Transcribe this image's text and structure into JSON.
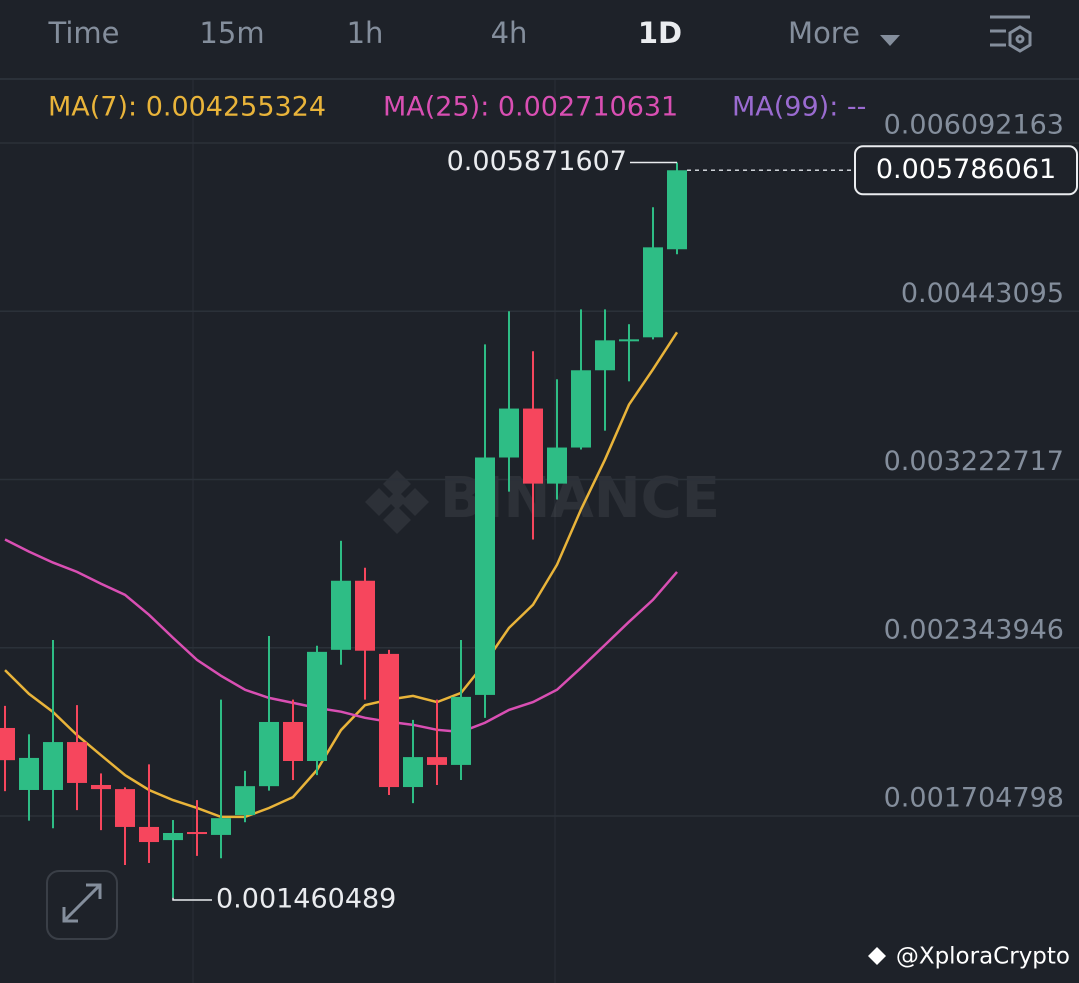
{
  "tabs": [
    "Time",
    "15m",
    "1h",
    "4h",
    "1D",
    "More"
  ],
  "active_tab": 4,
  "chart_data": {
    "type": "candlestick",
    "log_scale": true,
    "grid": true,
    "up_color": "#2ebd85",
    "down_color": "#f6465d",
    "ylim": [
      0.001243,
      0.006864
    ],
    "yticks": [
      0.006092163,
      0.00443095,
      0.003222717,
      0.002343946,
      0.001704798
    ],
    "open": [
      0.002014,
      0.001791,
      0.001791,
      0.001961,
      0.001808,
      0.001794,
      0.00167,
      0.001629,
      0.001654,
      0.001645,
      0.001708,
      0.001804,
      0.002037,
      0.001892,
      0.002335,
      0.002661,
      0.002317,
      0.001801,
      0.001906,
      0.001878,
      0.002144,
      0.00336,
      0.003686,
      0.003198,
      0.003424,
      0.003963,
      0.004194,
      0.004218,
      0.004983
    ],
    "high": [
      0.0021,
      0.00199,
      0.002379,
      0.002103,
      0.001848,
      0.0018,
      0.00188,
      0.001692,
      0.001757,
      0.002125,
      0.001857,
      0.002397,
      0.002125,
      0.002353,
      0.00287,
      0.002727,
      0.002335,
      0.002045,
      0.002125,
      0.002379,
      0.004162,
      0.004431,
      0.004108,
      0.003896,
      0.004447,
      0.004447,
      0.004324,
      0.005395,
      0.005871607
    ],
    "low": [
      0.001787,
      0.00169,
      0.001666,
      0.001724,
      0.00166,
      0.001554,
      0.00156,
      0.001460489,
      0.001581,
      0.001574,
      0.001685,
      0.001789,
      0.001825,
      0.001842,
      0.00227,
      0.002125,
      0.001774,
      0.001747,
      0.001808,
      0.001825,
      0.002053,
      0.00315,
      0.002877,
      0.003103,
      0.003411,
      0.003535,
      0.003881,
      0.004202,
      0.004936
    ],
    "close": [
      0.001895,
      0.001903,
      0.001961,
      0.001815,
      0.001794,
      0.00167,
      0.001623,
      0.001651,
      0.001648,
      0.001698,
      0.001804,
      0.002037,
      0.001892,
      0.002326,
      0.002661,
      0.002331,
      0.001801,
      0.001906,
      0.001878,
      0.002136,
      0.00336,
      0.003686,
      0.003198,
      0.003424,
      0.003963,
      0.004194,
      0.004202,
      0.005001,
      0.005786061
    ],
    "series": [
      {
        "name": "MA(7): 0.004255324",
        "color": "#e9b43a",
        "values": [
          0.002247,
          0.002148,
          0.002076,
          0.001987,
          0.001913,
          0.001842,
          0.001791,
          0.001757,
          0.001731,
          0.001702,
          0.001702,
          0.001731,
          0.001767,
          0.00186,
          0.002006,
          0.002103,
          0.002125,
          0.00214,
          0.002115,
          0.002152,
          0.002278,
          0.002434,
          0.002543,
          0.002743,
          0.003045,
          0.003347,
          0.003714,
          0.00397,
          0.004258
        ]
      },
      {
        "name": "MA(25): 0.002710631",
        "color": "#d94fb3",
        "values": [
          0.002877,
          0.002812,
          0.002754,
          0.002706,
          0.002646,
          0.002591,
          0.002495,
          0.002389,
          0.002291,
          0.002223,
          0.002165,
          0.002132,
          0.002112,
          0.002092,
          0.002077,
          0.002053,
          0.002038,
          0.002026,
          0.002007,
          0.001999,
          0.002034,
          0.002084,
          0.002115,
          0.002165,
          0.002257,
          0.002357,
          0.002462,
          0.002567,
          0.002706
        ]
      }
    ],
    "legend_note": {
      "text": "MA(99): --",
      "color": "#9a6bd0"
    },
    "current_price": 0.005786061,
    "watermark": "BINANCE"
  },
  "credit": "@XploraCrypto"
}
